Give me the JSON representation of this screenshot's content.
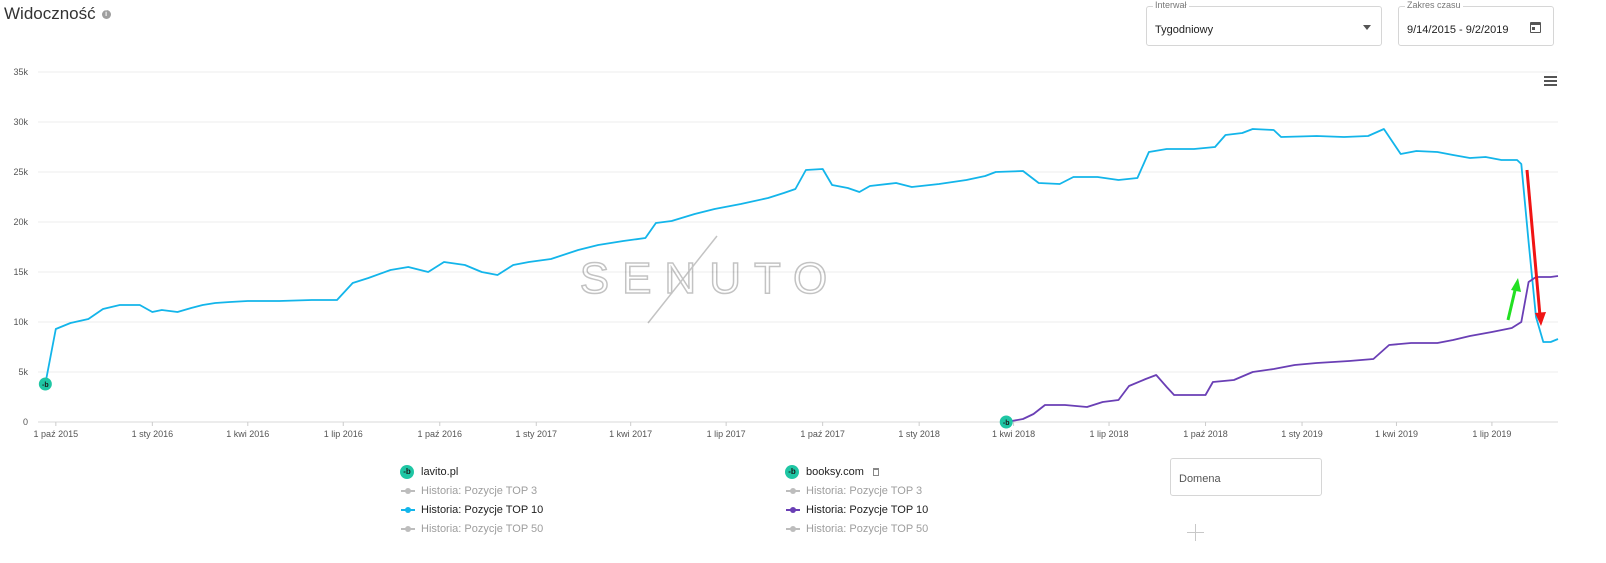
{
  "header": {
    "title": "Widoczność",
    "interval": {
      "label": "Interwał",
      "value": "Tygodniowy"
    },
    "date_range": {
      "label": "Zakres czasu",
      "value": "9/14/2015 - 9/2/2019"
    }
  },
  "watermark": "SENUTO",
  "legend": [
    {
      "site": "lavito.pl",
      "badge": "-b",
      "items": [
        {
          "label": "Historia: Pozycje TOP 3",
          "active": false,
          "color": "#bdbdbd"
        },
        {
          "label": "Historia: Pozycje TOP 10",
          "active": true,
          "color": "#13b5ea"
        },
        {
          "label": "Historia: Pozycje TOP 50",
          "active": false,
          "color": "#bdbdbd"
        }
      ]
    },
    {
      "site": "booksy.com",
      "badge": "-b",
      "items": [
        {
          "label": "Historia: Pozycje TOP 3",
          "active": false,
          "color": "#bdbdbd"
        },
        {
          "label": "Historia: Pozycje TOP 10",
          "active": true,
          "color": "#6a3fb5"
        },
        {
          "label": "Historia: Pozycje TOP 50",
          "active": false,
          "color": "#bdbdbd"
        }
      ]
    }
  ],
  "domain_input": {
    "placeholder": "Domena"
  },
  "chart_data": {
    "type": "line",
    "ylim": [
      0,
      35000
    ],
    "yticks": [
      {
        "value": 0,
        "label": "0"
      },
      {
        "value": 5000,
        "label": "5k"
      },
      {
        "value": 10000,
        "label": "10k"
      },
      {
        "value": 15000,
        "label": "15k"
      },
      {
        "value": 20000,
        "label": "20k"
      },
      {
        "value": 25000,
        "label": "25k"
      },
      {
        "value": 30000,
        "label": "30k"
      },
      {
        "value": 35000,
        "label": "35k"
      }
    ],
    "xlim": [
      "2015-09-14",
      "2019-09-02"
    ],
    "xticks": [
      {
        "date": "2015-10-01",
        "label": "1 paź 2015"
      },
      {
        "date": "2016-01-01",
        "label": "1 sty 2016"
      },
      {
        "date": "2016-04-01",
        "label": "1 kwi 2016"
      },
      {
        "date": "2016-07-01",
        "label": "1 lip 2016"
      },
      {
        "date": "2016-10-01",
        "label": "1 paź 2016"
      },
      {
        "date": "2017-01-01",
        "label": "1 sty 2017"
      },
      {
        "date": "2017-04-01",
        "label": "1 kwi 2017"
      },
      {
        "date": "2017-07-01",
        "label": "1 lip 2017"
      },
      {
        "date": "2017-10-01",
        "label": "1 paź 2017"
      },
      {
        "date": "2018-01-01",
        "label": "1 sty 2018"
      },
      {
        "date": "2018-04-01",
        "label": "1 kwi 2018"
      },
      {
        "date": "2018-07-01",
        "label": "1 lip 2018"
      },
      {
        "date": "2018-10-01",
        "label": "1 paź 2018"
      },
      {
        "date": "2019-01-01",
        "label": "1 sty 2019"
      },
      {
        "date": "2019-04-01",
        "label": "1 kwi 2019"
      },
      {
        "date": "2019-07-01",
        "label": "1 lip 2019"
      }
    ],
    "grid": true,
    "series": [
      {
        "name": "lavito.pl",
        "color": "#13b5ea",
        "points": [
          [
            "2015-09-21",
            3800
          ],
          [
            "2015-10-01",
            9300
          ],
          [
            "2015-10-15",
            9900
          ],
          [
            "2015-11-01",
            10300
          ],
          [
            "2015-11-15",
            11300
          ],
          [
            "2015-12-01",
            11700
          ],
          [
            "2015-12-20",
            11700
          ],
          [
            "2016-01-01",
            11000
          ],
          [
            "2016-01-10",
            11200
          ],
          [
            "2016-01-25",
            11000
          ],
          [
            "2016-02-07",
            11400
          ],
          [
            "2016-02-18",
            11700
          ],
          [
            "2016-03-01",
            11900
          ],
          [
            "2016-03-15",
            12000
          ],
          [
            "2016-04-01",
            12100
          ],
          [
            "2016-05-01",
            12100
          ],
          [
            "2016-06-01",
            12200
          ],
          [
            "2016-06-25",
            12200
          ],
          [
            "2016-07-10",
            13900
          ],
          [
            "2016-07-25",
            14400
          ],
          [
            "2016-08-15",
            15200
          ],
          [
            "2016-09-01",
            15500
          ],
          [
            "2016-09-20",
            15000
          ],
          [
            "2016-10-05",
            16000
          ],
          [
            "2016-10-25",
            15700
          ],
          [
            "2016-11-10",
            15000
          ],
          [
            "2016-11-25",
            14700
          ],
          [
            "2016-12-10",
            15700
          ],
          [
            "2016-12-25",
            16000
          ],
          [
            "2017-01-15",
            16300
          ],
          [
            "2017-02-10",
            17200
          ],
          [
            "2017-03-01",
            17700
          ],
          [
            "2017-03-25",
            18100
          ],
          [
            "2017-04-15",
            18400
          ],
          [
            "2017-04-25",
            19900
          ],
          [
            "2017-05-10",
            20100
          ],
          [
            "2017-06-01",
            20800
          ],
          [
            "2017-06-20",
            21300
          ],
          [
            "2017-07-15",
            21800
          ],
          [
            "2017-08-10",
            22400
          ],
          [
            "2017-08-25",
            22900
          ],
          [
            "2017-09-05",
            23300
          ],
          [
            "2017-09-15",
            25200
          ],
          [
            "2017-10-01",
            25300
          ],
          [
            "2017-10-10",
            23700
          ],
          [
            "2017-10-25",
            23400
          ],
          [
            "2017-11-05",
            23000
          ],
          [
            "2017-11-15",
            23600
          ],
          [
            "2017-12-10",
            23900
          ],
          [
            "2017-12-25",
            23500
          ],
          [
            "2018-01-20",
            23800
          ],
          [
            "2018-02-15",
            24200
          ],
          [
            "2018-03-05",
            24600
          ],
          [
            "2018-03-15",
            25000
          ],
          [
            "2018-04-10",
            25100
          ],
          [
            "2018-04-25",
            23900
          ],
          [
            "2018-05-15",
            23800
          ],
          [
            "2018-05-28",
            24500
          ],
          [
            "2018-06-20",
            24500
          ],
          [
            "2018-07-10",
            24200
          ],
          [
            "2018-07-28",
            24400
          ],
          [
            "2018-08-08",
            27000
          ],
          [
            "2018-08-25",
            27300
          ],
          [
            "2018-09-20",
            27300
          ],
          [
            "2018-10-10",
            27500
          ],
          [
            "2018-10-20",
            28700
          ],
          [
            "2018-11-05",
            28900
          ],
          [
            "2018-11-15",
            29300
          ],
          [
            "2018-12-05",
            29200
          ],
          [
            "2018-12-12",
            28500
          ],
          [
            "2019-01-15",
            28600
          ],
          [
            "2019-02-10",
            28500
          ],
          [
            "2019-03-05",
            28600
          ],
          [
            "2019-03-20",
            29300
          ],
          [
            "2019-04-05",
            26800
          ],
          [
            "2019-04-20",
            27100
          ],
          [
            "2019-05-10",
            27000
          ],
          [
            "2019-05-25",
            26700
          ],
          [
            "2019-06-10",
            26400
          ],
          [
            "2019-06-25",
            26500
          ],
          [
            "2019-07-10",
            26200
          ],
          [
            "2019-07-25",
            26200
          ],
          [
            "2019-07-29",
            25800
          ],
          [
            "2019-08-05",
            18000
          ],
          [
            "2019-08-12",
            10500
          ],
          [
            "2019-08-19",
            8000
          ],
          [
            "2019-08-26",
            8000
          ],
          [
            "2019-09-02",
            8300
          ]
        ]
      },
      {
        "name": "booksy.com",
        "color": "#6a3fb5",
        "points": [
          [
            "2018-03-25",
            0
          ],
          [
            "2018-04-10",
            300
          ],
          [
            "2018-04-20",
            800
          ],
          [
            "2018-05-01",
            1700
          ],
          [
            "2018-05-20",
            1700
          ],
          [
            "2018-06-10",
            1500
          ],
          [
            "2018-06-25",
            2000
          ],
          [
            "2018-07-10",
            2200
          ],
          [
            "2018-07-20",
            3600
          ],
          [
            "2018-08-05",
            4300
          ],
          [
            "2018-08-15",
            4700
          ],
          [
            "2018-08-25",
            3500
          ],
          [
            "2018-09-01",
            2700
          ],
          [
            "2018-09-20",
            2700
          ],
          [
            "2018-10-01",
            2700
          ],
          [
            "2018-10-08",
            4000
          ],
          [
            "2018-10-28",
            4200
          ],
          [
            "2018-11-15",
            5000
          ],
          [
            "2018-12-05",
            5300
          ],
          [
            "2018-12-25",
            5700
          ],
          [
            "2019-01-15",
            5900
          ],
          [
            "2019-02-15",
            6100
          ],
          [
            "2019-03-10",
            6300
          ],
          [
            "2019-03-25",
            7700
          ],
          [
            "2019-04-15",
            7900
          ],
          [
            "2019-05-10",
            7900
          ],
          [
            "2019-05-25",
            8200
          ],
          [
            "2019-06-10",
            8600
          ],
          [
            "2019-07-01",
            9000
          ],
          [
            "2019-07-20",
            9400
          ],
          [
            "2019-07-29",
            10000
          ],
          [
            "2019-08-05",
            14000
          ],
          [
            "2019-08-12",
            14500
          ],
          [
            "2019-08-26",
            14500
          ],
          [
            "2019-09-02",
            14600
          ]
        ]
      }
    ]
  }
}
